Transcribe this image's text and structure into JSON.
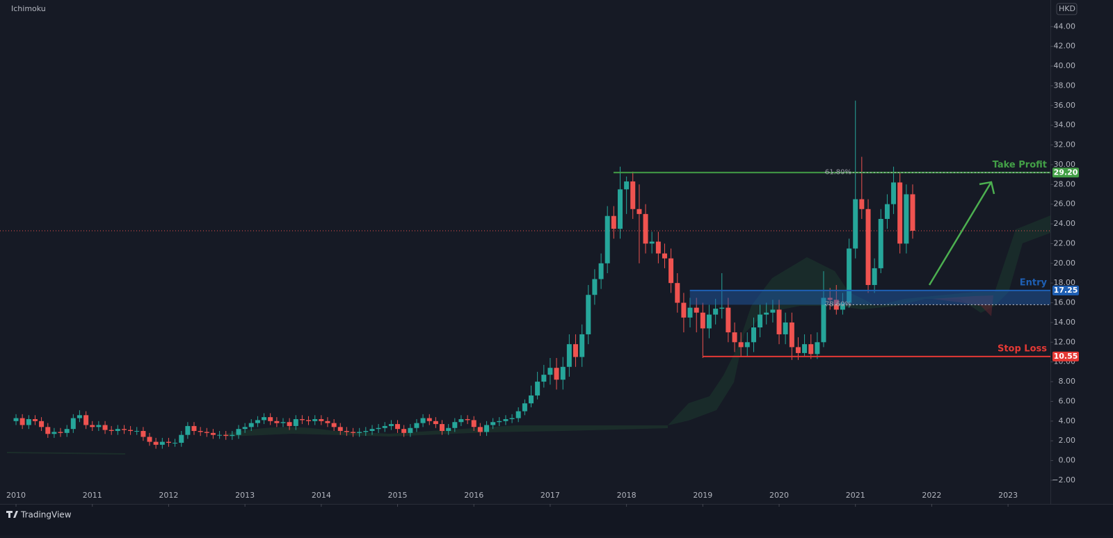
{
  "chart_data": {
    "type": "candlestick",
    "indicator": "Ichimoku",
    "currency": "HKD",
    "brand": "TradingView",
    "up_color": "#26a69a",
    "down_color": "#ef5350",
    "xlim": [
      2009.79,
      2023.555
    ],
    "xticks": [
      2010,
      2011,
      2012,
      2013,
      2014,
      2015,
      2016,
      2017,
      2018,
      2019,
      2020,
      2021,
      2022,
      2023
    ],
    "ylim": [
      -4.4,
      46.7
    ],
    "yticks": [
      {
        "value": -2,
        "label": "−2.00"
      },
      {
        "value": 0,
        "label": "0.00"
      },
      {
        "value": 2,
        "label": "2.00"
      },
      {
        "value": 4,
        "label": "4.00"
      },
      {
        "value": 6,
        "label": "6.00"
      },
      {
        "value": 8,
        "label": "8.00"
      },
      {
        "value": 10,
        "label": "10.00"
      },
      {
        "value": 12,
        "label": "12.00"
      },
      {
        "value": 14,
        "label": "14.00"
      },
      {
        "value": 16,
        "label": "16.00"
      },
      {
        "value": 18,
        "label": "18.00"
      },
      {
        "value": 20,
        "label": "20.00"
      },
      {
        "value": 22,
        "label": "22.00"
      },
      {
        "value": 24,
        "label": "24.00"
      },
      {
        "value": 26,
        "label": "26.00"
      },
      {
        "value": 28,
        "label": "28.00"
      },
      {
        "value": 30,
        "label": "30.00"
      },
      {
        "value": 32,
        "label": "32.00"
      },
      {
        "value": 34,
        "label": "34.00"
      },
      {
        "value": 36,
        "label": "36.00"
      },
      {
        "value": 38,
        "label": "38.00"
      },
      {
        "value": 40,
        "label": "40.00"
      },
      {
        "value": 42,
        "label": "42.00"
      },
      {
        "value": 44,
        "label": "44.00"
      }
    ],
    "x": [
      2010.0,
      2010.083,
      2010.167,
      2010.25,
      2010.333,
      2010.417,
      2010.5,
      2010.583,
      2010.667,
      2010.75,
      2010.833,
      2010.917,
      2011.0,
      2011.083,
      2011.167,
      2011.25,
      2011.333,
      2011.417,
      2011.5,
      2011.583,
      2011.667,
      2011.75,
      2011.833,
      2011.917,
      2012.0,
      2012.083,
      2012.167,
      2012.25,
      2012.333,
      2012.417,
      2012.5,
      2012.583,
      2012.667,
      2012.75,
      2012.833,
      2012.917,
      2013.0,
      2013.083,
      2013.167,
      2013.25,
      2013.333,
      2013.417,
      2013.5,
      2013.583,
      2013.667,
      2013.75,
      2013.833,
      2013.917,
      2014.0,
      2014.083,
      2014.167,
      2014.25,
      2014.333,
      2014.417,
      2014.5,
      2014.583,
      2014.667,
      2014.75,
      2014.833,
      2014.917,
      2015.0,
      2015.083,
      2015.167,
      2015.25,
      2015.333,
      2015.417,
      2015.5,
      2015.583,
      2015.667,
      2015.75,
      2015.833,
      2015.917,
      2016.0,
      2016.083,
      2016.167,
      2016.25,
      2016.333,
      2016.417,
      2016.5,
      2016.583,
      2016.667,
      2016.75,
      2016.833,
      2016.917,
      2017.0,
      2017.083,
      2017.167,
      2017.25,
      2017.333,
      2017.417,
      2017.5,
      2017.583,
      2017.667,
      2017.75,
      2017.833,
      2017.917,
      2018.0,
      2018.083,
      2018.167,
      2018.25,
      2018.333,
      2018.417,
      2018.5,
      2018.583,
      2018.667,
      2018.75,
      2018.833,
      2018.917,
      2019.0,
      2019.083,
      2019.167,
      2019.25,
      2019.333,
      2019.417,
      2019.5,
      2019.583,
      2019.667,
      2019.75,
      2019.833,
      2019.917,
      2020.0,
      2020.083,
      2020.167,
      2020.25,
      2020.333,
      2020.417,
      2020.5,
      2020.583,
      2020.667,
      2020.75,
      2020.833,
      2020.917,
      2021.0,
      2021.083,
      2021.167,
      2021.25,
      2021.333,
      2021.417,
      2021.5,
      2021.583,
      2021.667,
      2021.75
    ],
    "open": [
      4.0,
      4.3,
      3.6,
      4.2,
      4.0,
      3.4,
      2.7,
      2.9,
      2.8,
      3.2,
      4.3,
      4.6,
      3.6,
      3.4,
      3.6,
      3.1,
      3.0,
      3.2,
      3.1,
      3.0,
      3.0,
      2.4,
      1.9,
      1.6,
      1.9,
      1.8,
      1.8,
      2.6,
      3.5,
      3.0,
      2.9,
      2.8,
      2.6,
      2.6,
      2.5,
      2.6,
      3.2,
      3.4,
      3.8,
      4.1,
      4.4,
      4.0,
      3.8,
      3.9,
      3.5,
      4.2,
      4.1,
      4.0,
      4.2,
      4.0,
      3.8,
      3.4,
      3.0,
      2.9,
      2.8,
      2.9,
      3.0,
      3.2,
      3.3,
      3.5,
      3.7,
      3.2,
      2.8,
      3.3,
      3.8,
      4.3,
      4.0,
      3.7,
      3.0,
      3.3,
      3.9,
      4.2,
      4.1,
      3.4,
      2.9,
      3.6,
      3.9,
      4.0,
      4.2,
      4.3,
      5.0,
      5.8,
      6.6,
      8.0,
      8.7,
      9.4,
      8.2,
      9.5,
      11.8,
      10.5,
      12.8,
      16.8,
      18.4,
      20.0,
      24.8,
      23.5,
      27.5,
      28.3,
      25.5,
      25.0,
      22.0,
      22.2,
      21.0,
      20.5,
      18.0,
      16.0,
      14.5,
      15.5,
      15.0,
      13.4,
      14.8,
      15.4,
      15.5,
      13.0,
      12.0,
      11.5,
      12.0,
      13.5,
      14.8,
      15.0,
      15.3,
      12.8,
      14.0,
      11.5,
      10.9,
      11.8,
      10.8,
      12.0,
      16.5,
      16.3,
      15.3,
      16.0,
      21.5,
      26.5,
      25.5,
      17.8,
      19.5,
      24.5,
      26.0,
      28.2,
      22.0,
      27.0
    ],
    "high": [
      4.7,
      4.7,
      4.6,
      4.6,
      4.4,
      3.8,
      3.3,
      3.3,
      3.6,
      4.7,
      5.1,
      5.0,
      4.0,
      4.0,
      4.0,
      3.5,
      3.6,
      3.6,
      3.5,
      3.4,
      3.4,
      2.8,
      2.3,
      2.3,
      2.3,
      2.2,
      3.0,
      3.9,
      3.9,
      3.4,
      3.3,
      3.2,
      3.0,
      3.0,
      3.0,
      3.6,
      3.8,
      4.2,
      4.5,
      4.8,
      4.8,
      4.4,
      4.3,
      4.3,
      4.6,
      4.6,
      4.5,
      4.6,
      4.6,
      4.4,
      4.2,
      3.8,
      3.4,
      3.3,
      3.3,
      3.4,
      3.6,
      3.7,
      3.9,
      4.1,
      4.1,
      3.6,
      3.7,
      4.2,
      4.7,
      4.7,
      4.4,
      4.1,
      3.7,
      4.3,
      4.6,
      4.6,
      4.5,
      3.8,
      4.0,
      4.3,
      4.4,
      4.6,
      4.7,
      5.4,
      6.2,
      7.6,
      9.0,
      9.7,
      10.4,
      10.4,
      10.5,
      12.8,
      12.8,
      13.8,
      17.8,
      19.4,
      21.0,
      25.8,
      25.8,
      29.8,
      28.8,
      29.3,
      28.0,
      26.0,
      23.2,
      23.2,
      22.0,
      21.5,
      19.0,
      17.0,
      16.5,
      16.5,
      16.0,
      15.8,
      16.4,
      19.0,
      16.5,
      14.0,
      13.0,
      13.0,
      14.5,
      15.8,
      16.0,
      16.3,
      16.3,
      15.0,
      15.0,
      12.5,
      12.8,
      12.8,
      13.0,
      19.2,
      17.5,
      17.8,
      17.0,
      22.5,
      36.5,
      30.8,
      26.5,
      20.5,
      25.5,
      27.0,
      29.8,
      29.2,
      28.0,
      28.0
    ],
    "low": [
      3.6,
      3.2,
      3.2,
      3.6,
      3.0,
      2.3,
      2.3,
      2.4,
      2.4,
      2.8,
      3.9,
      3.2,
      3.0,
      3.0,
      2.7,
      2.6,
      2.6,
      2.7,
      2.6,
      2.6,
      2.0,
      1.5,
      1.2,
      1.2,
      1.4,
      1.4,
      1.4,
      2.2,
      2.6,
      2.5,
      2.4,
      2.2,
      2.2,
      2.1,
      2.1,
      2.2,
      2.8,
      3.0,
      3.4,
      3.7,
      3.6,
      3.4,
      3.4,
      3.1,
      3.1,
      3.7,
      3.6,
      3.6,
      3.6,
      3.4,
      3.0,
      2.6,
      2.5,
      2.4,
      2.4,
      2.5,
      2.6,
      2.8,
      2.9,
      3.1,
      2.8,
      2.4,
      2.4,
      2.9,
      3.4,
      3.6,
      3.3,
      2.6,
      2.6,
      2.9,
      3.5,
      3.7,
      3.0,
      2.5,
      2.5,
      3.2,
      3.5,
      3.6,
      3.8,
      3.9,
      4.6,
      5.4,
      6.2,
      7.4,
      7.7,
      7.2,
      7.2,
      8.5,
      9.5,
      9.5,
      11.8,
      15.8,
      17.4,
      19.0,
      22.5,
      22.5,
      25.0,
      24.5,
      20.0,
      21.0,
      21.0,
      20.0,
      19.5,
      17.0,
      15.0,
      13.0,
      13.5,
      13.0,
      10.4,
      12.4,
      13.8,
      14.4,
      12.0,
      11.0,
      10.5,
      10.5,
      11.0,
      12.5,
      13.8,
      14.0,
      11.8,
      11.8,
      10.2,
      10.2,
      10.5,
      10.3,
      10.3,
      11.5,
      15.3,
      14.8,
      14.8,
      15.5,
      20.5,
      24.5,
      17.0,
      17.0,
      19.0,
      23.5,
      25.0,
      21.0,
      21.0,
      22.5
    ],
    "close": [
      4.3,
      3.6,
      4.2,
      4.0,
      3.4,
      2.7,
      2.9,
      2.8,
      3.2,
      4.3,
      4.6,
      3.6,
      3.4,
      3.6,
      3.1,
      3.0,
      3.2,
      3.1,
      3.0,
      3.0,
      2.4,
      1.9,
      1.6,
      1.9,
      1.8,
      1.8,
      2.6,
      3.5,
      3.0,
      2.9,
      2.8,
      2.6,
      2.6,
      2.5,
      2.6,
      3.2,
      3.4,
      3.8,
      4.1,
      4.4,
      4.0,
      3.8,
      3.9,
      3.5,
      4.2,
      4.1,
      4.0,
      4.2,
      4.0,
      3.8,
      3.4,
      3.0,
      2.9,
      2.8,
      2.9,
      3.0,
      3.2,
      3.3,
      3.5,
      3.7,
      3.2,
      2.8,
      3.3,
      3.8,
      4.3,
      4.0,
      3.7,
      3.0,
      3.3,
      3.9,
      4.2,
      4.1,
      3.4,
      2.9,
      3.6,
      3.9,
      4.0,
      4.2,
      4.3,
      5.0,
      5.8,
      6.6,
      8.0,
      8.7,
      9.4,
      8.2,
      9.5,
      11.8,
      10.5,
      12.8,
      16.8,
      18.4,
      20.0,
      24.8,
      23.5,
      27.5,
      28.3,
      25.5,
      25.0,
      22.0,
      22.2,
      21.0,
      20.5,
      18.0,
      16.0,
      14.5,
      15.5,
      15.0,
      13.4,
      14.8,
      15.4,
      15.5,
      13.0,
      12.0,
      11.5,
      12.0,
      13.5,
      14.8,
      15.0,
      15.3,
      12.8,
      14.0,
      11.5,
      10.9,
      11.8,
      10.8,
      12.0,
      16.5,
      16.3,
      15.3,
      16.0,
      21.5,
      26.5,
      25.5,
      17.8,
      19.5,
      24.5,
      26.0,
      28.2,
      22.0,
      27.0,
      23.3
    ],
    "levels": [
      {
        "name": "Take Profit",
        "value": 29.2,
        "value_label": "29.20",
        "color": "#43a047",
        "start": 2017.83
      },
      {
        "name": "Entry",
        "value": 17.25,
        "value_label": "17.25",
        "color": "#1e5fb4",
        "start": 2018.83,
        "zone_low": 15.8
      },
      {
        "name": "Stop Loss",
        "value": 10.55,
        "value_label": "10.55",
        "color": "#e53935",
        "start": 2019.0
      }
    ],
    "fib_levels": [
      {
        "label": "61.80%",
        "value": 29.2,
        "start": 2020.6
      },
      {
        "label": "78.60%",
        "value": 15.8,
        "start": 2020.6
      }
    ]
  }
}
